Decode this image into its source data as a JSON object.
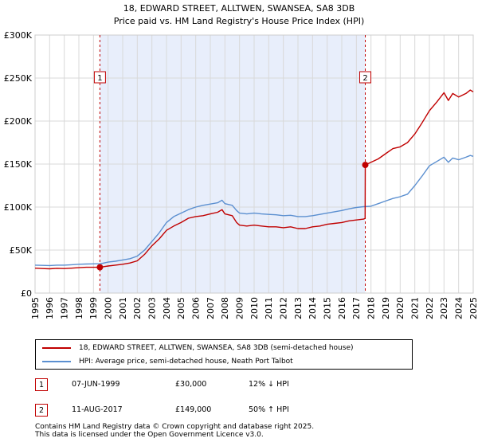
{
  "chart_data": {
    "type": "line",
    "title": "18, EDWARD STREET, ALLTWEN, SWANSEA, SA8 3DB",
    "subtitle": "Price paid vs. HM Land Registry's House Price Index (HPI)",
    "xlim": [
      1995,
      2025
    ],
    "ylim": [
      0,
      300000
    ],
    "yticks": [
      0,
      50000,
      100000,
      150000,
      200000,
      250000,
      300000
    ],
    "ytick_labels": [
      "£0",
      "£50K",
      "£100K",
      "£150K",
      "£200K",
      "£250K",
      "£300K"
    ],
    "xticks": [
      1995,
      1996,
      1997,
      1998,
      1999,
      2000,
      2001,
      2002,
      2003,
      2004,
      2005,
      2006,
      2007,
      2008,
      2009,
      2010,
      2011,
      2012,
      2013,
      2014,
      2015,
      2016,
      2017,
      2018,
      2019,
      2020,
      2021,
      2022,
      2023,
      2024,
      2025
    ],
    "xtick_labels": [
      "1995",
      "1996",
      "1997",
      "1998",
      "1999",
      "2000",
      "2001",
      "2002",
      "2003",
      "2004",
      "2005",
      "2006",
      "2007",
      "2008",
      "2009",
      "2010",
      "2011",
      "2012",
      "2013",
      "2014",
      "2015",
      "2016",
      "2017",
      "2018",
      "2019",
      "2020",
      "2021",
      "2022",
      "2023",
      "2024",
      "2025"
    ],
    "grid": true,
    "shaded_region": [
      1999.44,
      2017.61
    ],
    "series": [
      {
        "name": "18, EDWARD STREET, ALLTWEN, SWANSEA, SA8 3DB (semi-detached house)",
        "color": "#c00000",
        "x": [
          1995.0,
          1995.5,
          1996.0,
          1996.5,
          1997.0,
          1997.5,
          1998.0,
          1998.5,
          1999.0,
          1999.44,
          2000.0,
          2000.5,
          2001.0,
          2001.5,
          2002.0,
          2002.5,
          2003.0,
          2003.5,
          2004.0,
          2004.5,
          2005.0,
          2005.5,
          2006.0,
          2006.5,
          2007.0,
          2007.5,
          2007.8,
          2008.0,
          2008.5,
          2008.8,
          2009.0,
          2009.5,
          2010.0,
          2010.5,
          2011.0,
          2011.5,
          2012.0,
          2012.5,
          2013.0,
          2013.5,
          2014.0,
          2014.5,
          2015.0,
          2015.5,
          2016.0,
          2016.5,
          2017.0,
          2017.5,
          2017.6,
          2017.61,
          2018.0,
          2018.5,
          2019.0,
          2019.5,
          2020.0,
          2020.5,
          2021.0,
          2021.5,
          2022.0,
          2022.5,
          2023.0,
          2023.3,
          2023.6,
          2024.0,
          2024.5,
          2024.8,
          2025.0
        ],
        "y": [
          29000,
          28500,
          28200,
          28800,
          28500,
          29000,
          29500,
          30000,
          30000,
          30000,
          31500,
          32500,
          33500,
          35000,
          37500,
          45000,
          55000,
          63000,
          73000,
          78000,
          82000,
          87000,
          89000,
          90000,
          92000,
          94000,
          97000,
          92000,
          90000,
          82000,
          79000,
          78000,
          79000,
          78000,
          77000,
          77000,
          76000,
          77000,
          75000,
          75000,
          77000,
          78000,
          80000,
          81000,
          82000,
          84000,
          85000,
          86000,
          87000,
          149000,
          152000,
          156000,
          162000,
          168000,
          170000,
          175000,
          185000,
          198000,
          212000,
          222000,
          233000,
          224000,
          232000,
          228000,
          232000,
          236000,
          234000
        ]
      },
      {
        "name": "HPI: Average price, semi-detached house, Neath Port Talbot",
        "color": "#5b8fd0",
        "x": [
          1995.0,
          1995.5,
          1996.0,
          1996.5,
          1997.0,
          1997.5,
          1998.0,
          1998.5,
          1999.0,
          1999.5,
          2000.0,
          2000.5,
          2001.0,
          2001.5,
          2002.0,
          2002.5,
          2003.0,
          2003.5,
          2004.0,
          2004.5,
          2005.0,
          2005.5,
          2006.0,
          2006.5,
          2007.0,
          2007.5,
          2007.8,
          2008.0,
          2008.5,
          2008.8,
          2009.0,
          2009.5,
          2010.0,
          2010.5,
          2011.0,
          2011.5,
          2012.0,
          2012.5,
          2013.0,
          2013.5,
          2014.0,
          2014.5,
          2015.0,
          2015.5,
          2016.0,
          2016.5,
          2017.0,
          2017.5,
          2018.0,
          2018.5,
          2019.0,
          2019.5,
          2020.0,
          2020.5,
          2021.0,
          2021.5,
          2022.0,
          2022.5,
          2023.0,
          2023.3,
          2023.6,
          2024.0,
          2024.5,
          2024.8,
          2025.0
        ],
        "y": [
          32500,
          32200,
          32000,
          32500,
          32500,
          33000,
          33500,
          33800,
          34000,
          34200,
          36000,
          37000,
          38500,
          40000,
          43000,
          50000,
          60000,
          70000,
          82000,
          89000,
          93000,
          97000,
          100000,
          102000,
          103500,
          105000,
          108000,
          104000,
          102000,
          96000,
          93000,
          92000,
          93000,
          92000,
          91500,
          91000,
          90000,
          90500,
          89000,
          89000,
          90000,
          91500,
          93000,
          94500,
          96000,
          98000,
          99500,
          100500,
          101000,
          104000,
          107000,
          110000,
          112000,
          115000,
          125000,
          136000,
          148000,
          153000,
          158000,
          152000,
          157000,
          155000,
          158000,
          160000,
          159000
        ]
      }
    ],
    "markers": [
      {
        "label": "1",
        "x": 1999.44,
        "y": 30000
      },
      {
        "label": "2",
        "x": 2017.61,
        "y": 149000
      }
    ]
  },
  "legend": {
    "property_label": "18, EDWARD STREET, ALLTWEN, SWANSEA, SA8 3DB (semi-detached house)",
    "hpi_label": "HPI: Average price, semi-detached house, Neath Port Talbot"
  },
  "sales": [
    {
      "num": "1",
      "date": "07-JUN-1999",
      "price": "£30,000",
      "hpi": "12% ↓ HPI"
    },
    {
      "num": "2",
      "date": "11-AUG-2017",
      "price": "£149,000",
      "hpi": "50% ↑ HPI"
    }
  ],
  "footer": {
    "line1": "Contains HM Land Registry data © Crown copyright and database right 2025.",
    "line2": "This data is licensed under the Open Government Licence v3.0."
  },
  "colors": {
    "property": "#c00000",
    "hpi": "#5b8fd0",
    "shade": "#e8eefb",
    "grid": "#d9d9d9"
  }
}
